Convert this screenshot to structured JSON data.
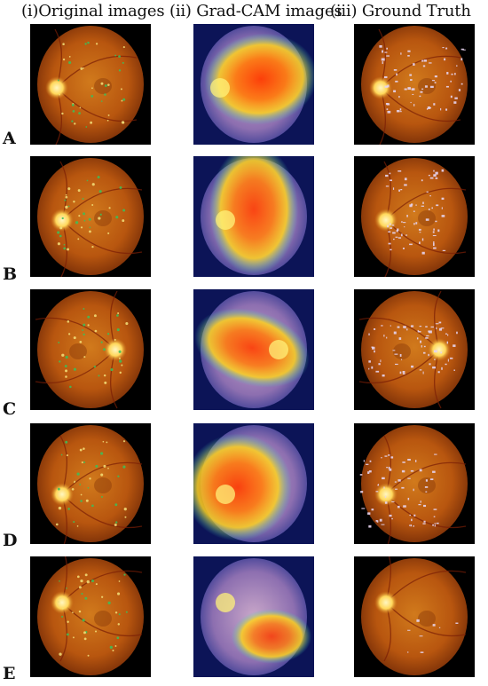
{
  "figure": {
    "columns": [
      {
        "label": "(i)Original images"
      },
      {
        "label": "(ii) Grad-CAM images"
      },
      {
        "label": "(iii) Ground Truth"
      }
    ],
    "rows": [
      {
        "label": "A",
        "hotspot_strength": 0.95
      },
      {
        "label": "B",
        "hotspot_strength": 0.9
      },
      {
        "label": "C",
        "hotspot_strength": 0.9
      },
      {
        "label": "D",
        "hotspot_strength": 0.92
      },
      {
        "label": "E",
        "hotspot_strength": 0.85
      }
    ],
    "colors": {
      "fundus_outer": "#7a2f08",
      "fundus_mid": "#b8560f",
      "fundus_inner": "#d17a1c",
      "optic_disc": "#ffd75a",
      "gradcam_bg": "#0c1457",
      "heat_hot": "#ff3a00",
      "heat_warm": "#ffd21e",
      "lesion_mask": "#e6d4f0"
    }
  }
}
